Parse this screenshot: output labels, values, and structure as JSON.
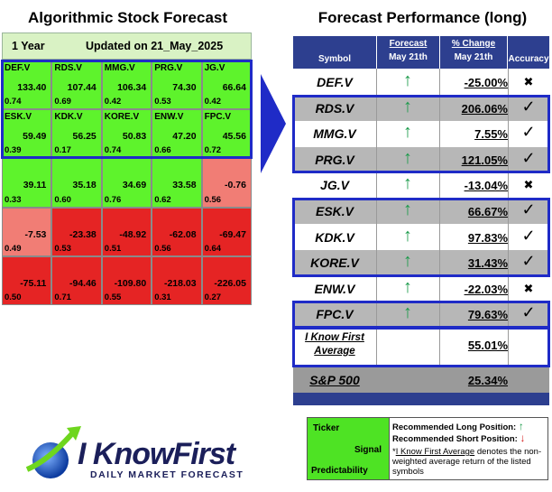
{
  "left_panel": {
    "title": "Algorithmic Stock Forecast",
    "period": "1 Year",
    "updated": "Updated on 21_May_2025",
    "cells": [
      {
        "ticker": "DEF.V",
        "signal": "133.40",
        "predictability": "0.74",
        "color": "green"
      },
      {
        "ticker": "RDS.V",
        "signal": "107.44",
        "predictability": "0.69",
        "color": "green"
      },
      {
        "ticker": "MMG.V",
        "signal": "106.34",
        "predictability": "0.42",
        "color": "green"
      },
      {
        "ticker": "PRG.V",
        "signal": "74.30",
        "predictability": "0.53",
        "color": "green"
      },
      {
        "ticker": "JG.V",
        "signal": "66.64",
        "predictability": "0.42",
        "color": "green"
      },
      {
        "ticker": "ESK.V",
        "signal": "59.49",
        "predictability": "0.39",
        "color": "green"
      },
      {
        "ticker": "KDK.V",
        "signal": "56.25",
        "predictability": "0.17",
        "color": "green"
      },
      {
        "ticker": "KORE.V",
        "signal": "50.83",
        "predictability": "0.74",
        "color": "green"
      },
      {
        "ticker": "ENW.V",
        "signal": "47.20",
        "predictability": "0.66",
        "color": "green"
      },
      {
        "ticker": "FPC.V",
        "signal": "45.56",
        "predictability": "0.72",
        "color": "green"
      },
      {
        "ticker": "",
        "signal": "39.11",
        "predictability": "0.33",
        "color": "green"
      },
      {
        "ticker": "",
        "signal": "35.18",
        "predictability": "0.60",
        "color": "green"
      },
      {
        "ticker": "",
        "signal": "34.69",
        "predictability": "0.76",
        "color": "green"
      },
      {
        "ticker": "",
        "signal": "33.58",
        "predictability": "0.62",
        "color": "green"
      },
      {
        "ticker": "",
        "signal": "-0.76",
        "predictability": "0.56",
        "color": "pink"
      },
      {
        "ticker": "",
        "signal": "-7.53",
        "predictability": "0.49",
        "color": "pink"
      },
      {
        "ticker": "",
        "signal": "-23.38",
        "predictability": "0.53",
        "color": "red"
      },
      {
        "ticker": "",
        "signal": "-48.92",
        "predictability": "0.51",
        "color": "red"
      },
      {
        "ticker": "",
        "signal": "-62.08",
        "predictability": "0.56",
        "color": "red"
      },
      {
        "ticker": "",
        "signal": "-69.47",
        "predictability": "0.64",
        "color": "red"
      },
      {
        "ticker": "",
        "signal": "-75.11",
        "predictability": "0.50",
        "color": "red"
      },
      {
        "ticker": "",
        "signal": "-94.46",
        "predictability": "0.71",
        "color": "red"
      },
      {
        "ticker": "",
        "signal": "-109.80",
        "predictability": "0.55",
        "color": "red"
      },
      {
        "ticker": "",
        "signal": "-218.03",
        "predictability": "0.31",
        "color": "red"
      },
      {
        "ticker": "",
        "signal": "-226.05",
        "predictability": "0.27",
        "color": "red"
      }
    ]
  },
  "right_panel": {
    "title": "Forecast Performance (long)",
    "headers": {
      "symbol": "Symbol",
      "forecast": "Forecast",
      "forecast_date": "May 21th",
      "change": "% Change",
      "change_date": "May 21th",
      "accuracy": "Accuracy"
    },
    "rows": [
      {
        "symbol": "DEF.V",
        "forecast": "↑",
        "change": "-25.00%",
        "accuracy": "✖"
      },
      {
        "symbol": "RDS.V",
        "forecast": "↑",
        "change": "206.06%",
        "accuracy": "✓"
      },
      {
        "symbol": "MMG.V",
        "forecast": "↑",
        "change": "7.55%",
        "accuracy": "✓"
      },
      {
        "symbol": "PRG.V",
        "forecast": "↑",
        "change": "121.05%",
        "accuracy": "✓"
      },
      {
        "symbol": "JG.V",
        "forecast": "↑",
        "change": "-13.04%",
        "accuracy": "✖"
      },
      {
        "symbol": "ESK.V",
        "forecast": "↑",
        "change": "66.67%",
        "accuracy": "✓"
      },
      {
        "symbol": "KDK.V",
        "forecast": "↑",
        "change": "97.83%",
        "accuracy": "✓"
      },
      {
        "symbol": "KORE.V",
        "forecast": "↑",
        "change": "31.43%",
        "accuracy": "✓"
      },
      {
        "symbol": "ENW.V",
        "forecast": "↑",
        "change": "-22.03%",
        "accuracy": "✖"
      },
      {
        "symbol": "FPC.V",
        "forecast": "↑",
        "change": "79.63%",
        "accuracy": "✓"
      }
    ],
    "average": {
      "label_line1": "I Know First",
      "label_line2": "Average",
      "change": "55.01%"
    },
    "sp500": {
      "label": "S&P 500",
      "change": "25.34%"
    }
  },
  "legend": {
    "ticker": "Ticker",
    "signal": "Signal",
    "predictability": "Predictability",
    "long": "Recommended Long Position:",
    "short": "Recommended Short Position:",
    "note_prefix": "*",
    "note_link": "I Know First Average",
    "note_rest": " denotes the non-weighted average return of the listed symbols",
    "up_arrow": "↑",
    "down_arrow": "↓"
  },
  "logo": {
    "brand": "I KnowFirst",
    "tagline": "DAILY MARKET FORECAST"
  },
  "colors": {
    "green": "#5ef32c",
    "red": "#e52424",
    "pink": "#f17d75",
    "header_blue": "#2d3f8f",
    "box_blue": "#1f2bc7"
  },
  "icons": {
    "arrow": "right-chevron-arrow-icon",
    "up": "green-up-arrow-icon",
    "check": "check-icon",
    "cross": "cross-icon"
  }
}
